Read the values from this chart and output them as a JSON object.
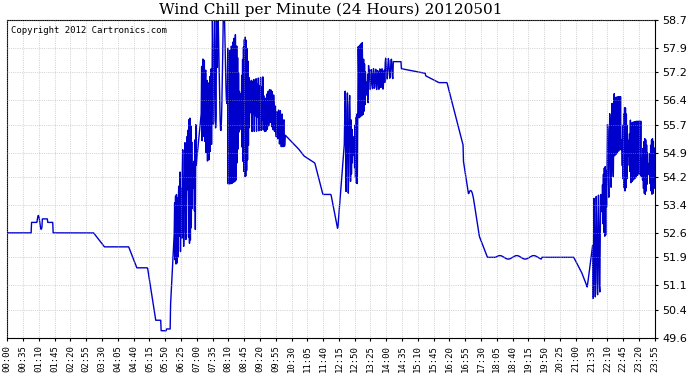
{
  "title": "Wind Chill per Minute (24 Hours) 20120501",
  "copyright": "Copyright 2012 Cartronics.com",
  "ylim": [
    49.6,
    58.7
  ],
  "yticks": [
    58.7,
    57.9,
    57.2,
    56.4,
    55.7,
    54.9,
    54.2,
    53.4,
    52.6,
    51.9,
    51.1,
    50.4,
    49.6
  ],
  "xtick_labels": [
    "00:00",
    "00:35",
    "01:10",
    "01:45",
    "02:20",
    "02:55",
    "03:30",
    "04:05",
    "04:40",
    "05:15",
    "05:50",
    "06:25",
    "07:00",
    "07:35",
    "08:10",
    "08:45",
    "09:20",
    "09:55",
    "10:30",
    "11:05",
    "11:40",
    "12:15",
    "12:50",
    "13:25",
    "14:00",
    "14:35",
    "15:10",
    "15:45",
    "16:20",
    "16:55",
    "17:30",
    "18:05",
    "18:40",
    "19:15",
    "19:50",
    "20:25",
    "21:00",
    "21:35",
    "22:10",
    "22:45",
    "23:20",
    "23:55"
  ],
  "line_color": "#0000cc",
  "line_width": 1.0,
  "background_color": "#ffffff",
  "grid_color": "#aaaaaa",
  "title_fontsize": 11,
  "copyright_fontsize": 6.5,
  "tick_fontsize": 6.5,
  "ytick_fontsize": 8
}
